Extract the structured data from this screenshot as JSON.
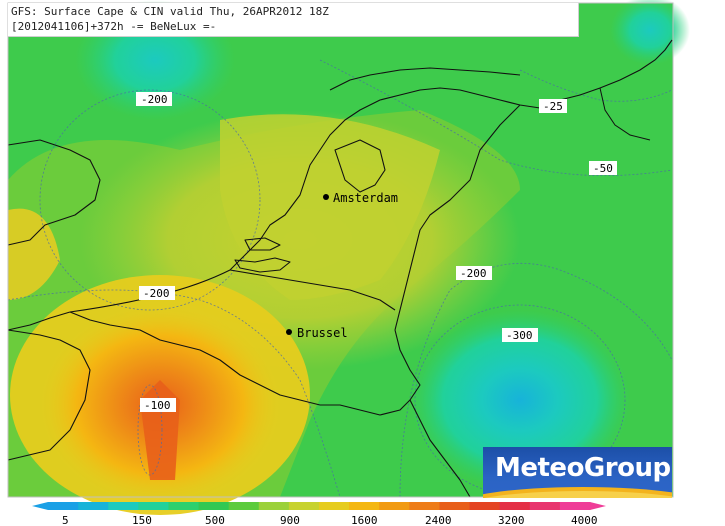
{
  "header": {
    "line1": "GFS: Surface Cape & CIN valid Thu, 26APR2012 18Z",
    "line2": "[2012041106]+372h  -= BeNeLux =-"
  },
  "cities": [
    {
      "name": "Amsterdam"
    },
    {
      "name": "Brussel"
    }
  ],
  "cin_labels": [
    "-200",
    "-25",
    "-50",
    "-200",
    "-200",
    "-300",
    "-100"
  ],
  "colorbar": {
    "tick_labels": [
      "5",
      "150",
      "500",
      "900",
      "1600",
      "2400",
      "3200",
      "4000"
    ],
    "colors": [
      "#1aa0e6",
      "#17b3d9",
      "#1ccabf",
      "#21d19a",
      "#2bd06e",
      "#32c853",
      "#5ccb3d",
      "#9bd13a",
      "#c7d22e",
      "#e6cc1e",
      "#f4b712",
      "#f19a12",
      "#ee7c18",
      "#e85f1a",
      "#e44422",
      "#e42f45",
      "#e8356e",
      "#ef3d98"
    ]
  },
  "logo": {
    "text": "MeteoGroup"
  }
}
